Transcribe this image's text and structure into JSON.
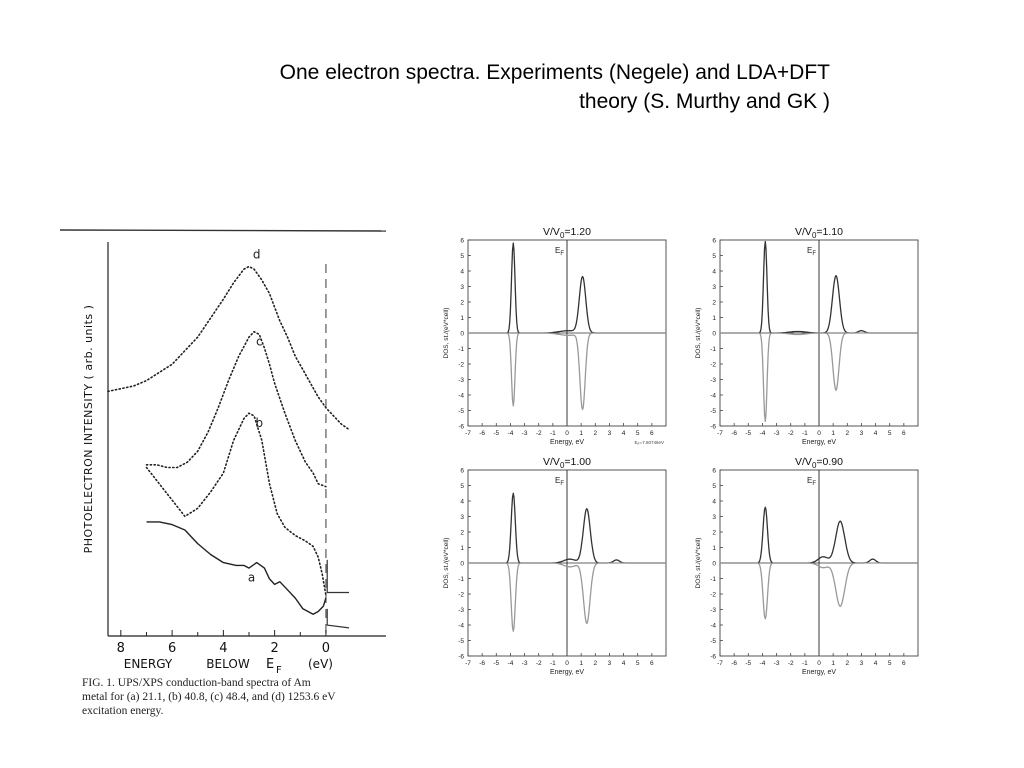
{
  "slide": {
    "title_line1": "One electron spectra. Experiments (Negele) and LDA+DFT",
    "title_line2": "theory  (S. Murthy and GK )"
  },
  "chart_data": [
    {
      "type": "line",
      "ylabel": "PHOTOELECTRON   INTENSITY   ( arb. units )",
      "xlabel_parts": [
        "ENERGY",
        "BELOW",
        "E",
        "F",
        "(eV)"
      ],
      "x_ticks": [
        8,
        6,
        4,
        2,
        0
      ],
      "xlim": [
        8.5,
        -0.9
      ],
      "caption_lines": [
        "FIG. 1.  UPS/XPS  conduction-band  spectra  of  Am",
        "metal for (a) 21.1, (b) 40.8, (c) 48.4, and (d) 1253.6 eV",
        "excitation energy."
      ],
      "series": [
        {
          "name": "a",
          "style": "solid",
          "x": [
            7.0,
            6.5,
            6.0,
            5.5,
            5.0,
            4.5,
            4.0,
            3.5,
            3.2,
            3.0,
            2.7,
            2.4,
            2.2,
            2.0,
            1.8,
            1.5,
            1.2,
            0.9,
            0.7,
            0.5,
            0.3,
            0.1,
            0.0
          ],
          "y": [
            0.42,
            0.42,
            0.41,
            0.39,
            0.34,
            0.3,
            0.27,
            0.26,
            0.26,
            0.25,
            0.27,
            0.25,
            0.21,
            0.19,
            0.2,
            0.17,
            0.14,
            0.1,
            0.09,
            0.08,
            0.09,
            0.11,
            0.14
          ]
        },
        {
          "name": "b",
          "style": "dotted",
          "x": [
            7.0,
            6.5,
            6.0,
            5.5,
            5.0,
            4.5,
            4.0,
            3.6,
            3.2,
            3.0,
            2.8,
            2.5,
            2.2,
            1.9,
            1.6,
            1.2,
            0.8,
            0.5,
            0.3,
            0.15,
            0.0
          ],
          "y": [
            0.62,
            0.56,
            0.5,
            0.44,
            0.47,
            0.53,
            0.6,
            0.72,
            0.8,
            0.82,
            0.81,
            0.72,
            0.56,
            0.45,
            0.4,
            0.37,
            0.35,
            0.33,
            0.29,
            0.23,
            0.15
          ]
        },
        {
          "name": "c",
          "style": "dotted",
          "x": [
            7.0,
            6.6,
            6.2,
            5.8,
            5.4,
            5.0,
            4.6,
            4.2,
            3.8,
            3.4,
            3.0,
            2.8,
            2.6,
            2.4,
            2.2,
            2.0,
            1.6,
            1.2,
            0.8,
            0.5,
            0.3,
            0.0
          ],
          "y": [
            0.63,
            0.63,
            0.62,
            0.62,
            0.64,
            0.68,
            0.75,
            0.84,
            0.94,
            1.03,
            1.1,
            1.12,
            1.11,
            1.06,
            1.0,
            0.93,
            0.82,
            0.72,
            0.64,
            0.6,
            0.56,
            0.55
          ]
        },
        {
          "name": "d",
          "style": "dotted",
          "x": [
            8.5,
            8.0,
            7.5,
            7.0,
            6.5,
            6.0,
            5.5,
            5.0,
            4.5,
            4.0,
            3.6,
            3.2,
            3.0,
            2.8,
            2.5,
            2.2,
            2.0,
            1.8,
            1.5,
            1.2,
            0.9,
            0.6,
            0.3,
            0.0,
            -0.3,
            -0.6,
            -0.9
          ],
          "y": [
            0.9,
            0.91,
            0.92,
            0.94,
            0.97,
            1.0,
            1.05,
            1.1,
            1.17,
            1.24,
            1.3,
            1.35,
            1.36,
            1.35,
            1.31,
            1.26,
            1.21,
            1.16,
            1.1,
            1.03,
            0.98,
            0.93,
            0.88,
            0.84,
            0.81,
            0.78,
            0.76
          ]
        }
      ]
    },
    {
      "type": "line",
      "title_main": "V/V",
      "title_sub": "0",
      "title_value": "=1.20",
      "fermi_label": "E",
      "fermi_sub": "F",
      "ylabel": "DOS, st./(eV*cell)",
      "xlabel": "Energy, eV",
      "note": "E",
      "note_sub": "F",
      "note_value": "=7.60746eV",
      "x_ticks": [
        -7,
        -6,
        -5,
        -4,
        -3,
        -2,
        -1,
        0,
        1,
        2,
        3,
        4,
        5,
        6
      ],
      "y_ticks": [
        6,
        5,
        4,
        3,
        2,
        1,
        0,
        -1,
        -2,
        -3,
        -4,
        -5,
        -6
      ],
      "xlim": [
        -7,
        7
      ],
      "ylim": [
        -6,
        6
      ],
      "peaks_up": [
        [
          -3.8,
          5.8,
          0.17
        ],
        [
          1.1,
          3.6,
          0.32
        ],
        [
          0.1,
          0.15,
          0.9
        ]
      ],
      "peaks_down": [
        [
          -3.8,
          4.7,
          0.17
        ],
        [
          1.1,
          4.9,
          0.26
        ],
        [
          0.1,
          0.15,
          0.9
        ]
      ]
    },
    {
      "type": "line",
      "title_main": "V/V",
      "title_sub": "0",
      "title_value": "=1.10",
      "fermi_label": "E",
      "fermi_sub": "F",
      "ylabel": "DOS, st./(eV*cell)",
      "xlabel": "Energy, eV",
      "x_ticks": [
        -7,
        -6,
        -5,
        -4,
        -3,
        -2,
        -1,
        0,
        1,
        2,
        3,
        4,
        5,
        6
      ],
      "y_ticks": [
        6,
        5,
        4,
        3,
        2,
        1,
        0,
        -1,
        -2,
        -3,
        -4,
        -5,
        -6
      ],
      "xlim": [
        -7,
        7
      ],
      "ylim": [
        -6,
        6
      ],
      "peaks_up": [
        [
          -3.8,
          5.9,
          0.17
        ],
        [
          1.2,
          3.7,
          0.35
        ],
        [
          -1.5,
          0.1,
          0.8
        ],
        [
          3.0,
          0.15,
          0.3
        ]
      ],
      "peaks_down": [
        [
          -3.8,
          5.7,
          0.17
        ],
        [
          1.2,
          3.7,
          0.3
        ],
        [
          -1.5,
          0.1,
          0.8
        ]
      ]
    },
    {
      "type": "line",
      "title_main": "V/V",
      "title_sub": "0",
      "title_value": "=1.00",
      "fermi_label": "E",
      "fermi_sub": "F",
      "ylabel": "DOS, st./(eV*cell)",
      "xlabel": "Energy, eV",
      "x_ticks": [
        -7,
        -6,
        -5,
        -4,
        -3,
        -2,
        -1,
        0,
        1,
        2,
        3,
        4,
        5,
        6
      ],
      "y_ticks": [
        6,
        5,
        4,
        3,
        2,
        1,
        0,
        -1,
        -2,
        -3,
        -4,
        -5,
        -6
      ],
      "xlim": [
        -7,
        7
      ],
      "ylim": [
        -6,
        6
      ],
      "peaks_up": [
        [
          -3.8,
          4.5,
          0.2
        ],
        [
          1.4,
          3.5,
          0.35
        ],
        [
          0.2,
          0.25,
          0.6
        ],
        [
          3.5,
          0.2,
          0.3
        ]
      ],
      "peaks_down": [
        [
          -3.8,
          4.4,
          0.2
        ],
        [
          1.4,
          3.9,
          0.33
        ],
        [
          0.2,
          0.25,
          0.6
        ]
      ]
    },
    {
      "type": "line",
      "title_main": "V/V",
      "title_sub": "0",
      "title_value": "=0.90",
      "fermi_label": "E",
      "fermi_sub": "F",
      "ylabel": "DOS, st./(eV*cell)",
      "xlabel": "Energy, eV",
      "x_ticks": [
        -7,
        -6,
        -5,
        -4,
        -3,
        -2,
        -1,
        0,
        1,
        2,
        3,
        4,
        5,
        6
      ],
      "y_ticks": [
        6,
        5,
        4,
        3,
        2,
        1,
        0,
        -1,
        -2,
        -3,
        -4,
        -5,
        -6
      ],
      "xlim": [
        -7,
        7
      ],
      "ylim": [
        -6,
        6
      ],
      "peaks_up": [
        [
          -3.8,
          3.6,
          0.22
        ],
        [
          1.5,
          2.7,
          0.45
        ],
        [
          0.3,
          0.4,
          0.5
        ],
        [
          3.8,
          0.25,
          0.3
        ]
      ],
      "peaks_down": [
        [
          -3.8,
          3.6,
          0.22
        ],
        [
          1.5,
          2.8,
          0.45
        ],
        [
          0.3,
          0.3,
          0.5
        ]
      ]
    }
  ]
}
